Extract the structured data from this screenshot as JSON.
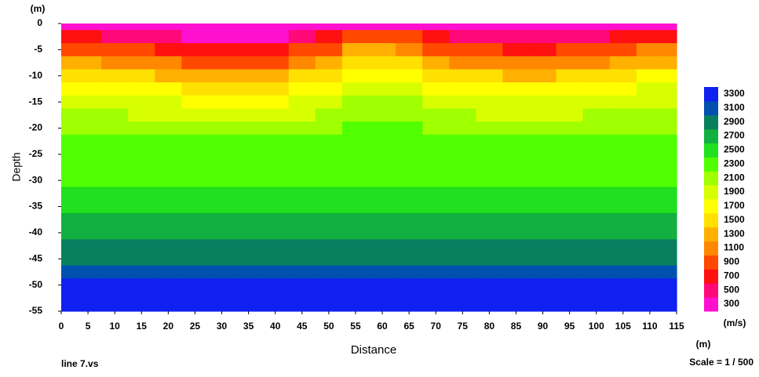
{
  "chart_data": {
    "type": "heatmap",
    "y_unit": "(m)",
    "x_unit": "(m)",
    "xlabel": "Distance",
    "ylabel": "Depth",
    "footer_left": "line 7.vs",
    "footer_right": "Scale = 1 / 500",
    "xlim": [
      0,
      115
    ],
    "ylim": [
      -55,
      0
    ],
    "xticks": [
      0,
      5,
      10,
      15,
      20,
      25,
      30,
      35,
      40,
      45,
      50,
      55,
      60,
      65,
      70,
      75,
      80,
      85,
      90,
      95,
      100,
      105,
      110,
      115
    ],
    "yticks": [
      0,
      -5,
      -10,
      -15,
      -20,
      -25,
      -30,
      -35,
      -40,
      -45,
      -50,
      -55
    ],
    "x": [
      0,
      5,
      10,
      15,
      20,
      25,
      30,
      35,
      40,
      45,
      50,
      55,
      60,
      65,
      70,
      75,
      80,
      85,
      90,
      95,
      100,
      105,
      110,
      115
    ],
    "y": [
      0,
      -2.5,
      -5,
      -7.5,
      -10,
      -12.5,
      -15,
      -17.5,
      -20,
      -22.5,
      -25,
      -27.5,
      -30,
      -32.5,
      -35,
      -37.5,
      -40,
      -42.5,
      -45,
      -47.5,
      -50,
      -52.5,
      -55
    ],
    "z": [
      [
        400,
        400,
        400,
        400,
        400,
        400,
        400,
        400,
        400,
        400,
        400,
        400,
        400,
        400,
        400,
        400,
        400,
        400,
        400,
        400,
        400,
        400,
        400,
        400
      ],
      [
        700,
        700,
        580,
        520,
        460,
        400,
        400,
        400,
        400,
        520,
        700,
        940,
        1000,
        880,
        700,
        580,
        520,
        460,
        460,
        520,
        580,
        700,
        760,
        760
      ],
      [
        1000,
        1000,
        880,
        820,
        760,
        700,
        640,
        640,
        700,
        820,
        1000,
        1240,
        1300,
        1180,
        1000,
        880,
        820,
        760,
        760,
        820,
        880,
        1000,
        1060,
        1060
      ],
      [
        1300,
        1300,
        1180,
        1120,
        1060,
        1000,
        940,
        940,
        1000,
        1120,
        1300,
        1540,
        1600,
        1480,
        1300,
        1180,
        1120,
        1060,
        1060,
        1120,
        1180,
        1300,
        1360,
        1360
      ],
      [
        1600,
        1600,
        1480,
        1420,
        1360,
        1300,
        1240,
        1240,
        1300,
        1420,
        1600,
        1760,
        1800,
        1720,
        1600,
        1480,
        1420,
        1360,
        1360,
        1420,
        1480,
        1600,
        1640,
        1640
      ],
      [
        1800,
        1800,
        1720,
        1680,
        1640,
        1600,
        1540,
        1540,
        1600,
        1680,
        1800,
        1920,
        1950,
        1890,
        1800,
        1720,
        1680,
        1640,
        1640,
        1680,
        1720,
        1800,
        1830,
        1830
      ],
      [
        1950,
        1950,
        1890,
        1860,
        1830,
        1800,
        1760,
        1760,
        1800,
        1860,
        1950,
        2030,
        2050,
        2010,
        1950,
        1890,
        1860,
        1830,
        1830,
        1860,
        1890,
        1950,
        1970,
        1970
      ],
      [
        2050,
        2050,
        2010,
        1990,
        1970,
        1950,
        1920,
        1920,
        1950,
        1990,
        2050,
        2130,
        2150,
        2110,
        2050,
        2010,
        1990,
        1970,
        1970,
        1990,
        2010,
        2050,
        2070,
        2070
      ],
      [
        2150,
        2150,
        2110,
        2090,
        2070,
        2050,
        2030,
        2030,
        2050,
        2090,
        2150,
        2230,
        2250,
        2210,
        2150,
        2110,
        2090,
        2070,
        2070,
        2090,
        2110,
        2150,
        2170,
        2170
      ],
      [
        2250,
        2250,
        2250,
        2250,
        2250,
        2250,
        2250,
        2250,
        2250,
        2250,
        2250,
        2250,
        2250,
        2250,
        2250,
        2280,
        2330,
        2350,
        2350,
        2330,
        2280,
        2250,
        2250,
        2250
      ],
      [
        2300,
        2300,
        2300,
        2300,
        2300,
        2300,
        2300,
        2300,
        2300,
        2300,
        2300,
        2300,
        2300,
        2300,
        2300,
        2330,
        2380,
        2400,
        2400,
        2380,
        2330,
        2300,
        2300,
        2300
      ],
      [
        2350,
        2350,
        2350,
        2350,
        2350,
        2350,
        2350,
        2350,
        2350,
        2350,
        2350,
        2350,
        2350,
        2350,
        2350,
        2350,
        2350,
        2350,
        2350,
        2350,
        2350,
        2350,
        2350,
        2350
      ],
      [
        2400,
        2400,
        2400,
        2400,
        2400,
        2400,
        2400,
        2400,
        2400,
        2400,
        2400,
        2400,
        2400,
        2400,
        2400,
        2400,
        2400,
        2400,
        2400,
        2400,
        2400,
        2400,
        2400,
        2400
      ],
      [
        2450,
        2450,
        2450,
        2450,
        2450,
        2450,
        2450,
        2450,
        2450,
        2450,
        2450,
        2450,
        2450,
        2450,
        2450,
        2450,
        2450,
        2450,
        2450,
        2450,
        2450,
        2450,
        2450,
        2450
      ],
      [
        2500,
        2500,
        2500,
        2500,
        2500,
        2500,
        2500,
        2500,
        2500,
        2500,
        2500,
        2500,
        2500,
        2500,
        2500,
        2500,
        2500,
        2500,
        2500,
        2500,
        2500,
        2500,
        2500,
        2500
      ],
      [
        2650,
        2650,
        2650,
        2650,
        2650,
        2650,
        2650,
        2650,
        2650,
        2650,
        2650,
        2650,
        2650,
        2650,
        2650,
        2650,
        2650,
        2650,
        2650,
        2650,
        2650,
        2650,
        2650,
        2650
      ],
      [
        2750,
        2750,
        2750,
        2750,
        2750,
        2750,
        2750,
        2750,
        2750,
        2750,
        2750,
        2750,
        2750,
        2750,
        2750,
        2750,
        2750,
        2750,
        2750,
        2750,
        2750,
        2750,
        2750,
        2750
      ],
      [
        2900,
        2900,
        2900,
        2900,
        2900,
        2900,
        2900,
        2900,
        2900,
        2900,
        2900,
        2900,
        2900,
        2900,
        2900,
        2900,
        2900,
        2900,
        2900,
        2900,
        2900,
        2900,
        2900,
        2900
      ],
      [
        3000,
        3000,
        3000,
        3000,
        3000,
        3000,
        3000,
        3000,
        3000,
        3000,
        3000,
        3000,
        3000,
        3000,
        3000,
        3000,
        3000,
        3000,
        3000,
        3000,
        3000,
        3000,
        3000,
        3000
      ],
      [
        3200,
        3200,
        3200,
        3200,
        3200,
        3200,
        3200,
        3200,
        3200,
        3200,
        3200,
        3200,
        3200,
        3200,
        3200,
        3200,
        3200,
        3200,
        3200,
        3200,
        3200,
        3200,
        3200,
        3200
      ],
      [
        3300,
        3300,
        3300,
        3300,
        3300,
        3300,
        3300,
        3300,
        3300,
        3300,
        3300,
        3300,
        3300,
        3300,
        3300,
        3300,
        3300,
        3300,
        3300,
        3300,
        3300,
        3300,
        3300,
        3300
      ],
      [
        3300,
        3300,
        3300,
        3300,
        3300,
        3300,
        3300,
        3300,
        3300,
        3300,
        3300,
        3300,
        3300,
        3300,
        3300,
        3300,
        3300,
        3300,
        3300,
        3300,
        3300,
        3300,
        3300,
        3300
      ],
      [
        3300,
        3300,
        3300,
        3300,
        3300,
        3300,
        3300,
        3300,
        3300,
        3300,
        3300,
        3300,
        3300,
        3300,
        3300,
        3300,
        3300,
        3300,
        3300,
        3300,
        3300,
        3300,
        3300,
        3300
      ]
    ],
    "colorbar": {
      "unit": "(m/s)",
      "ticks": [
        300,
        500,
        700,
        900,
        1100,
        1300,
        1500,
        1700,
        1900,
        2100,
        2300,
        2500,
        2700,
        2900,
        3100,
        3300
      ],
      "colors": [
        "#ff10d0",
        "#ff0878",
        "#ff1010",
        "#ff4800",
        "#ff8800",
        "#ffb000",
        "#ffe000",
        "#ffff00",
        "#d8ff00",
        "#a0ff00",
        "#50ff00",
        "#20e020",
        "#12b040",
        "#088060",
        "#0050b0",
        "#1020f0"
      ]
    }
  }
}
